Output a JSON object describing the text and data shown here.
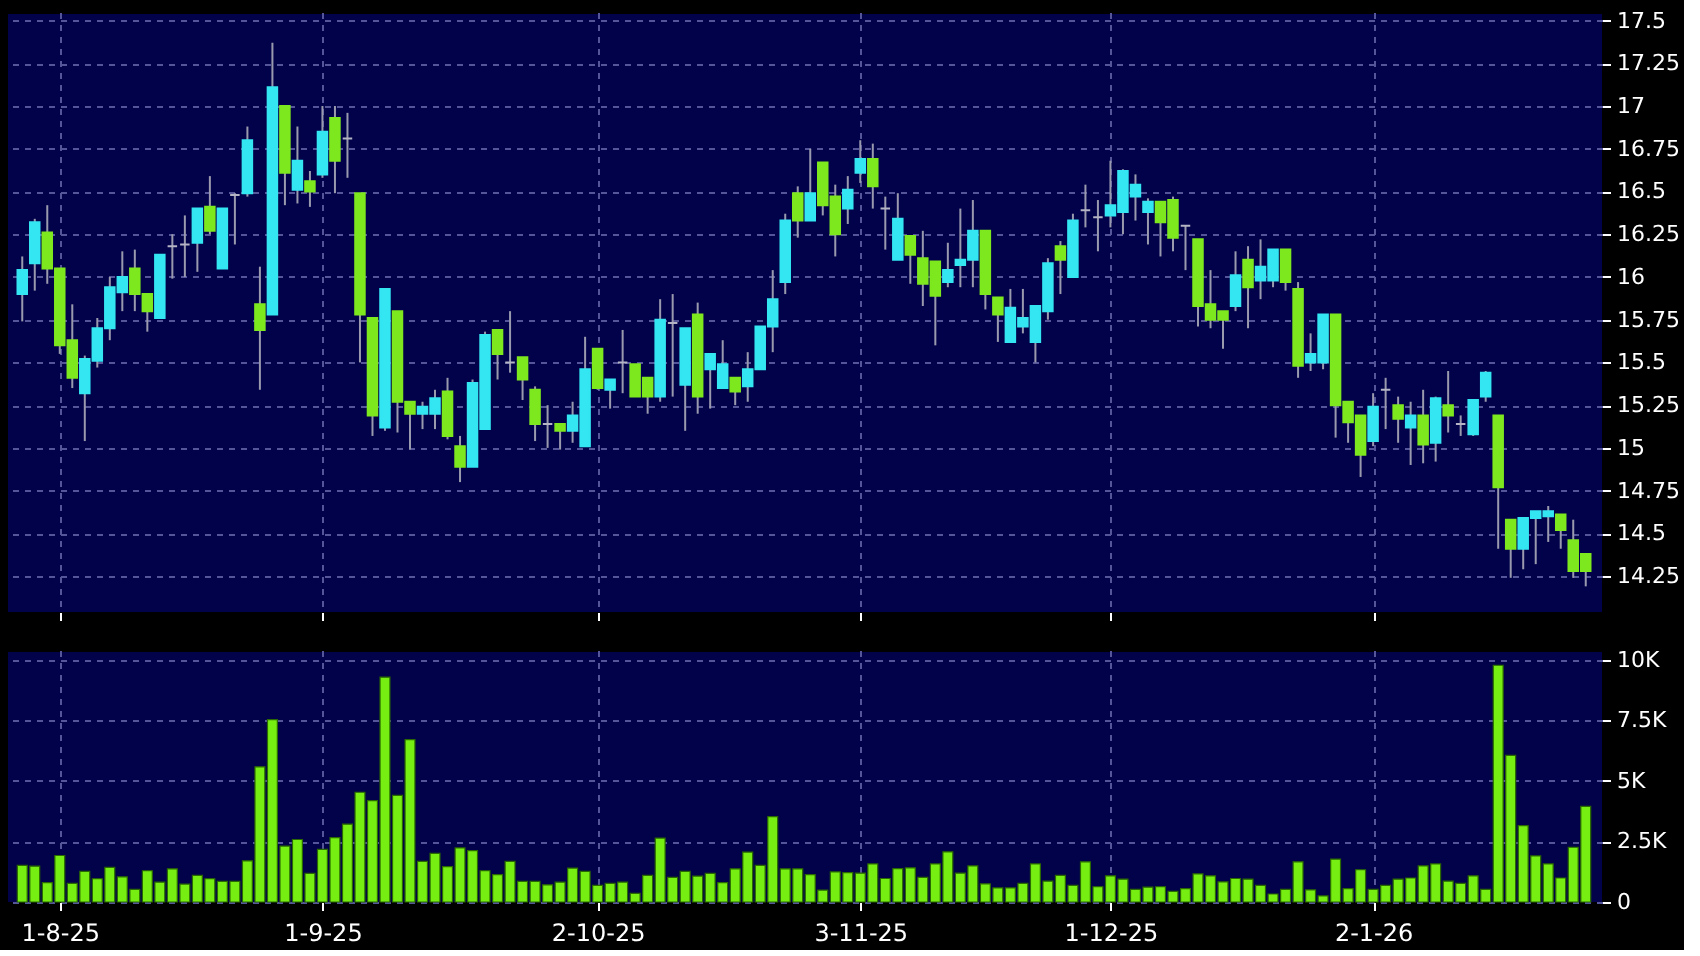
{
  "chart_data": [
    {
      "type": "candlestick",
      "tick_labels": "y",
      "grid": true,
      "ylim": [
        14.04,
        17.55
      ],
      "yticks": [
        14.25,
        14.5,
        14.75,
        15,
        15.25,
        15.5,
        15.75,
        16,
        16.25,
        16.5,
        16.75,
        17,
        17.25,
        17.5
      ],
      "categories": [
        null,
        null,
        null,
        null,
        null,
        null,
        null,
        null,
        null,
        null,
        null,
        null,
        null,
        null,
        null,
        null,
        null,
        null,
        null,
        null,
        null,
        null,
        null,
        null,
        null,
        null,
        null,
        null,
        null,
        null,
        null,
        null,
        null,
        null,
        null,
        null,
        null,
        null,
        null,
        null,
        null,
        null,
        null,
        null,
        null,
        null,
        null,
        null,
        null,
        null,
        null,
        null,
        null,
        null,
        null,
        null,
        null,
        null,
        null,
        null,
        null,
        null,
        null,
        null,
        null,
        null,
        null,
        null,
        null,
        null,
        null,
        null,
        null,
        null,
        null,
        null,
        null,
        null,
        null,
        null,
        null,
        null,
        null,
        null,
        null,
        null,
        null,
        null,
        null,
        null,
        null,
        null,
        null,
        null,
        null,
        null,
        null,
        null,
        null,
        null,
        null,
        null,
        null,
        null,
        null,
        null,
        null,
        null,
        null,
        null,
        null,
        null,
        null,
        null,
        null,
        null,
        null,
        null,
        null,
        null,
        null,
        null,
        null,
        null,
        null,
        null
      ],
      "ohlc": [
        [
          15.9,
          16.12,
          15.74,
          16.04
        ],
        [
          16.08,
          16.34,
          15.92,
          16.32
        ],
        [
          16.26,
          16.42,
          15.96,
          16.05
        ],
        [
          16.05,
          16.05,
          15.55,
          15.6
        ],
        [
          15.63,
          15.84,
          15.35,
          15.41
        ],
        [
          15.32,
          15.54,
          15.04,
          15.52
        ],
        [
          15.51,
          15.76,
          15.47,
          15.7
        ],
        [
          15.7,
          16.0,
          15.63,
          15.94
        ],
        [
          15.91,
          16.15,
          15.8,
          16.0
        ],
        [
          16.05,
          16.16,
          15.8,
          15.9
        ],
        [
          15.9,
          15.9,
          15.68,
          15.8
        ],
        [
          15.76,
          16.13,
          15.76,
          16.13
        ],
        [
          16.18,
          16.25,
          15.99,
          16.18
        ],
        [
          16.19,
          16.36,
          16.0,
          16.19
        ],
        [
          16.2,
          16.4,
          16.03,
          16.4
        ],
        [
          16.41,
          16.59,
          16.25,
          16.27
        ],
        [
          16.05,
          16.4,
          16.05,
          16.4
        ],
        [
          16.48,
          16.49,
          16.19,
          16.48
        ],
        [
          16.49,
          16.88,
          16.47,
          16.8
        ],
        [
          15.84,
          16.06,
          15.34,
          15.69
        ],
        [
          15.78,
          17.37,
          15.78,
          17.11
        ],
        [
          17.0,
          17.0,
          16.42,
          16.61
        ],
        [
          16.51,
          16.88,
          16.43,
          16.68
        ],
        [
          16.56,
          16.62,
          16.41,
          16.5
        ],
        [
          16.6,
          17.0,
          16.58,
          16.85
        ],
        [
          16.93,
          17.0,
          16.49,
          16.68
        ],
        [
          16.81,
          16.96,
          16.58,
          16.81
        ],
        [
          16.49,
          16.49,
          15.5,
          15.78
        ],
        [
          15.76,
          15.76,
          15.07,
          15.19
        ],
        [
          15.12,
          15.93,
          15.1,
          15.93
        ],
        [
          15.8,
          15.8,
          15.09,
          15.27
        ],
        [
          15.27,
          15.27,
          14.99,
          15.2
        ],
        [
          15.2,
          15.27,
          15.11,
          15.24
        ],
        [
          15.2,
          15.34,
          15.11,
          15.29
        ],
        [
          15.33,
          15.41,
          15.05,
          15.07
        ],
        [
          15.01,
          15.07,
          14.8,
          14.89
        ],
        [
          14.89,
          15.4,
          14.89,
          15.38
        ],
        [
          15.11,
          15.68,
          15.11,
          15.66
        ],
        [
          15.69,
          15.69,
          15.4,
          15.55
        ],
        [
          15.5,
          15.8,
          15.44,
          15.5
        ],
        [
          15.53,
          15.53,
          15.28,
          15.4
        ],
        [
          15.34,
          15.36,
          15.04,
          15.14
        ],
        [
          15.14,
          15.25,
          15.0,
          15.14
        ],
        [
          15.14,
          15.14,
          14.99,
          15.1
        ],
        [
          15.1,
          15.27,
          15.03,
          15.19
        ],
        [
          15.01,
          15.65,
          15.01,
          15.46
        ],
        [
          15.58,
          15.58,
          15.34,
          15.35
        ],
        [
          15.34,
          15.4,
          15.23,
          15.4
        ],
        [
          15.5,
          15.69,
          15.32,
          15.5
        ],
        [
          15.49,
          15.49,
          15.3,
          15.3
        ],
        [
          15.41,
          15.41,
          15.2,
          15.3
        ],
        [
          15.3,
          15.87,
          15.27,
          15.75
        ],
        [
          15.73,
          15.9,
          15.3,
          15.73
        ],
        [
          15.37,
          15.7,
          15.1,
          15.7
        ],
        [
          15.78,
          15.85,
          15.2,
          15.3
        ],
        [
          15.46,
          15.55,
          15.23,
          15.55
        ],
        [
          15.35,
          15.63,
          15.35,
          15.49
        ],
        [
          15.41,
          15.41,
          15.25,
          15.33
        ],
        [
          15.36,
          15.56,
          15.27,
          15.46
        ],
        [
          15.46,
          15.71,
          15.46,
          15.71
        ],
        [
          15.71,
          16.04,
          15.56,
          15.87
        ],
        [
          15.97,
          16.37,
          15.9,
          16.33
        ],
        [
          16.49,
          16.53,
          16.23,
          16.33
        ],
        [
          16.33,
          16.75,
          16.33,
          16.49
        ],
        [
          16.67,
          16.67,
          16.36,
          16.42
        ],
        [
          16.47,
          16.54,
          16.12,
          16.25
        ],
        [
          16.4,
          16.59,
          16.31,
          16.51
        ],
        [
          16.61,
          16.8,
          16.55,
          16.69
        ],
        [
          16.69,
          16.78,
          16.4,
          16.53
        ],
        [
          16.4,
          16.47,
          16.16,
          16.4
        ],
        [
          16.1,
          16.49,
          16.1,
          16.34
        ],
        [
          16.24,
          16.24,
          15.96,
          16.13
        ],
        [
          16.11,
          16.27,
          15.83,
          15.96
        ],
        [
          16.09,
          16.09,
          15.6,
          15.89
        ],
        [
          15.97,
          16.2,
          15.94,
          16.04
        ],
        [
          16.07,
          16.4,
          15.94,
          16.1
        ],
        [
          16.1,
          16.45,
          15.94,
          16.27
        ],
        [
          16.27,
          16.27,
          15.81,
          15.9
        ],
        [
          15.88,
          15.88,
          15.62,
          15.78
        ],
        [
          15.62,
          15.93,
          15.62,
          15.82
        ],
        [
          15.71,
          15.93,
          15.67,
          15.76
        ],
        [
          15.62,
          15.83,
          15.5,
          15.83
        ],
        [
          15.8,
          16.11,
          15.75,
          16.08
        ],
        [
          16.18,
          16.21,
          15.9,
          16.1
        ],
        [
          16.0,
          16.37,
          16.0,
          16.33
        ],
        [
          16.39,
          16.54,
          16.29,
          16.39
        ],
        [
          16.35,
          16.45,
          16.15,
          16.35
        ],
        [
          16.36,
          16.68,
          16.29,
          16.42
        ],
        [
          16.38,
          16.63,
          16.25,
          16.62
        ],
        [
          16.47,
          16.6,
          16.33,
          16.54
        ],
        [
          16.38,
          16.46,
          16.19,
          16.44
        ],
        [
          16.44,
          16.44,
          16.12,
          16.32
        ],
        [
          16.45,
          16.47,
          16.15,
          16.23
        ],
        [
          16.3,
          16.3,
          16.04,
          16.3
        ],
        [
          16.22,
          16.22,
          15.71,
          15.83
        ],
        [
          15.84,
          16.04,
          15.7,
          15.75
        ],
        [
          15.8,
          15.8,
          15.58,
          15.75
        ],
        [
          15.83,
          16.15,
          15.8,
          16.01
        ],
        [
          16.1,
          16.18,
          15.7,
          15.94
        ],
        [
          15.98,
          16.22,
          15.87,
          16.06
        ],
        [
          15.98,
          16.16,
          15.94,
          16.16
        ],
        [
          16.16,
          16.16,
          15.92,
          15.97
        ],
        [
          15.93,
          15.97,
          15.41,
          15.48
        ],
        [
          15.5,
          15.67,
          15.45,
          15.55
        ],
        [
          15.5,
          15.78,
          15.46,
          15.78
        ],
        [
          15.78,
          15.78,
          15.06,
          15.25
        ],
        [
          15.27,
          15.27,
          15.03,
          15.15
        ],
        [
          15.19,
          15.19,
          14.83,
          14.96
        ],
        [
          15.04,
          15.32,
          15.01,
          15.24
        ],
        [
          15.34,
          15.41,
          15.11,
          15.34
        ],
        [
          15.25,
          15.3,
          15.03,
          15.17
        ],
        [
          15.12,
          15.27,
          14.9,
          15.19
        ],
        [
          15.19,
          15.34,
          14.91,
          15.02
        ],
        [
          15.03,
          15.3,
          14.92,
          15.29
        ],
        [
          15.25,
          15.45,
          15.09,
          15.19
        ],
        [
          15.14,
          15.19,
          15.07,
          15.14
        ],
        [
          15.08,
          15.28,
          15.07,
          15.28
        ],
        [
          15.3,
          15.45,
          15.27,
          15.44
        ],
        [
          15.19,
          15.19,
          14.41,
          14.77
        ],
        [
          14.58,
          14.58,
          14.24,
          14.41
        ],
        [
          14.41,
          14.59,
          14.29,
          14.59
        ],
        [
          14.59,
          14.63,
          14.32,
          14.63
        ],
        [
          14.6,
          14.66,
          14.45,
          14.63
        ],
        [
          14.61,
          14.61,
          14.41,
          14.52
        ],
        [
          14.46,
          14.58,
          14.24,
          14.28
        ],
        [
          14.38,
          14.38,
          14.19,
          14.28
        ]
      ],
      "colors": [
        "#33e6f2",
        "#33e6f2",
        "#7ee81e",
        "#7ee81e",
        "#7ee81e",
        "#33e6f2",
        "#33e6f2",
        "#33e6f2",
        "#33e6f2",
        "#7ee81e",
        "#7ee81e",
        "#33e6f2",
        "#b4b4c4",
        "#b4b4c4",
        "#33e6f2",
        "#7ee81e",
        "#33e6f2",
        "#b4b4c4",
        "#33e6f2",
        "#7ee81e",
        "#33e6f2",
        "#7ee81e",
        "#33e6f2",
        "#7ee81e",
        "#33e6f2",
        "#7ee81e",
        "#b4b4c4",
        "#7ee81e",
        "#7ee81e",
        "#33e6f2",
        "#7ee81e",
        "#7ee81e",
        "#33e6f2",
        "#33e6f2",
        "#7ee81e",
        "#7ee81e",
        "#33e6f2",
        "#33e6f2",
        "#7ee81e",
        "#b4b4c4",
        "#7ee81e",
        "#7ee81e",
        "#b4b4c4",
        "#7ee81e",
        "#33e6f2",
        "#33e6f2",
        "#7ee81e",
        "#33e6f2",
        "#b4b4c4",
        "#7ee81e",
        "#7ee81e",
        "#33e6f2",
        "#b4b4c4",
        "#33e6f2",
        "#7ee81e",
        "#33e6f2",
        "#33e6f2",
        "#7ee81e",
        "#33e6f2",
        "#33e6f2",
        "#33e6f2",
        "#33e6f2",
        "#7ee81e",
        "#33e6f2",
        "#7ee81e",
        "#7ee81e",
        "#33e6f2",
        "#33e6f2",
        "#7ee81e",
        "#b4b4c4",
        "#33e6f2",
        "#7ee81e",
        "#7ee81e",
        "#7ee81e",
        "#33e6f2",
        "#33e6f2",
        "#33e6f2",
        "#7ee81e",
        "#7ee81e",
        "#33e6f2",
        "#33e6f2",
        "#33e6f2",
        "#33e6f2",
        "#7ee81e",
        "#33e6f2",
        "#b4b4c4",
        "#b4b4c4",
        "#33e6f2",
        "#33e6f2",
        "#33e6f2",
        "#33e6f2",
        "#7ee81e",
        "#7ee81e",
        "#b4b4c4",
        "#7ee81e",
        "#7ee81e",
        "#7ee81e",
        "#33e6f2",
        "#7ee81e",
        "#33e6f2",
        "#33e6f2",
        "#7ee81e",
        "#7ee81e",
        "#33e6f2",
        "#33e6f2",
        "#7ee81e",
        "#7ee81e",
        "#7ee81e",
        "#33e6f2",
        "#b4b4c4",
        "#7ee81e",
        "#33e6f2",
        "#7ee81e",
        "#33e6f2",
        "#7ee81e",
        "#b4b4c4",
        "#33e6f2",
        "#33e6f2",
        "#7ee81e",
        "#7ee81e",
        "#33e6f2",
        "#33e6f2",
        "#33e6f2",
        "#7ee81e",
        "#7ee81e",
        "#7ee81e"
      ]
    },
    {
      "type": "bar",
      "grid": true,
      "color": "#77ee11",
      "ylim": [
        0,
        10400
      ],
      "yticks": [
        0,
        {
          "value": 2500,
          "label": "2.5K"
        },
        {
          "value": 5000,
          "label": "5K"
        },
        {
          "value": 7500,
          "label": "7.5K"
        },
        {
          "value": 10000,
          "label": "10K"
        }
      ],
      "categories": [
        null,
        null,
        null,
        "1-8-25",
        null,
        null,
        null,
        null,
        null,
        null,
        null,
        null,
        null,
        null,
        null,
        null,
        null,
        null,
        null,
        null,
        null,
        null,
        null,
        null,
        "1-9-25",
        null,
        null,
        null,
        null,
        null,
        null,
        null,
        null,
        null,
        null,
        null,
        null,
        null,
        null,
        null,
        null,
        null,
        null,
        null,
        null,
        null,
        "2-10-25",
        null,
        null,
        null,
        null,
        null,
        null,
        null,
        null,
        null,
        null,
        null,
        null,
        null,
        null,
        null,
        null,
        null,
        null,
        null,
        null,
        "3-11-25",
        null,
        null,
        null,
        null,
        null,
        null,
        null,
        null,
        null,
        null,
        null,
        null,
        null,
        null,
        null,
        null,
        null,
        null,
        null,
        "1-12-25",
        null,
        null,
        null,
        null,
        null,
        null,
        null,
        null,
        null,
        null,
        null,
        null,
        null,
        null,
        null,
        null,
        null,
        null,
        null,
        null,
        "2-1-26",
        null,
        null,
        null,
        null,
        null,
        null,
        null,
        null,
        null,
        null,
        null,
        null,
        null,
        null,
        null,
        null,
        null
      ],
      "values": [
        1510,
        1480,
        800,
        1920,
        770,
        1260,
        960,
        1430,
        1040,
        520,
        1290,
        820,
        1370,
        740,
        1100,
        960,
        850,
        850,
        1700,
        5580,
        7530,
        2310,
        2580,
        1180,
        2170,
        2660,
        3210,
        4530,
        4180,
        9280,
        4400,
        6700,
        1680,
        2010,
        1460,
        2230,
        2120,
        1290,
        1130,
        1680,
        850,
        850,
        710,
        820,
        1400,
        1260,
        690,
        770,
        820,
        360,
        1100,
        2640,
        1020,
        1260,
        1070,
        1180,
        800,
        1370,
        2060,
        1510,
        3520,
        1370,
        1370,
        1130,
        490,
        1240,
        1210,
        1190,
        1570,
        970,
        1380,
        1410,
        1020,
        1570,
        2070,
        1190,
        1490,
        750,
        580,
        580,
        770,
        1570,
        860,
        1100,
        690,
        1660,
        630,
        1080,
        940,
        520,
        610,
        630,
        440,
        550,
        1160,
        1080,
        830,
        970,
        940,
        690,
        330,
        520,
        1660,
        500,
        250,
        1770,
        550,
        1330,
        520,
        690,
        940,
        990,
        1490,
        1570,
        860,
        770,
        1080,
        520,
        9770,
        6050,
        3150,
        1900,
        1570,
        990,
        2260,
        3950
      ]
    }
  ]
}
